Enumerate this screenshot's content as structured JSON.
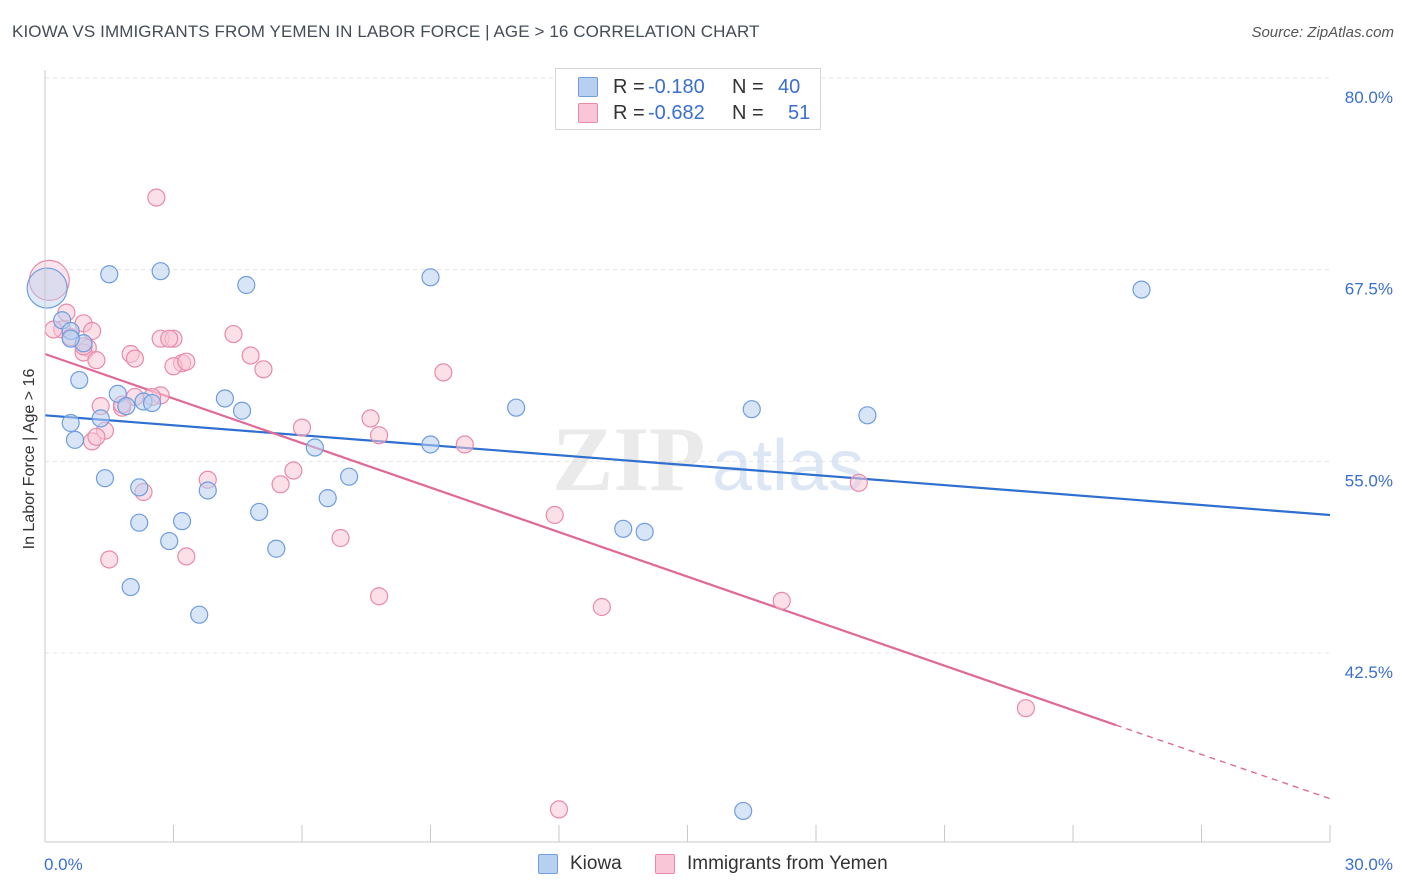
{
  "header": {
    "title": "KIOWA VS IMMIGRANTS FROM YEMEN IN LABOR FORCE | AGE > 16 CORRELATION CHART",
    "source": "Source: ZipAtlas.com"
  },
  "watermark": {
    "part1": "ZIP",
    "part2": "atlas"
  },
  "colors": {
    "kiowa_fill": "#b8d0f0",
    "kiowa_stroke": "#6f9de0",
    "kiowa_line": "#2e6fcf",
    "yemen_fill": "#f8c6d6",
    "yemen_stroke": "#e98aab",
    "yemen_line": "#e06a97",
    "tick_text": "#3b6fcf",
    "grid": "#e4e4e4"
  },
  "legend_top": {
    "rows": [
      {
        "r_label": "R =",
        "r_value": "-0.180",
        "n_label": "N =",
        "n_value": "40"
      },
      {
        "r_label": "R =",
        "r_value": "-0.682",
        "n_label": "N =",
        "n_value": "51"
      }
    ]
  },
  "legend_bottom": {
    "items": [
      "Kiowa",
      "Immigrants from Yemen"
    ]
  },
  "chart_data": {
    "type": "scatter",
    "title": "KIOWA VS IMMIGRANTS FROM YEMEN IN LABOR FORCE | AGE > 16 CORRELATION CHART",
    "xlabel": "",
    "ylabel": "In Labor Force | Age > 16",
    "xlim": [
      0,
      30
    ],
    "ylim": [
      32,
      81
    ],
    "x_tick_labels": [
      "0.0%",
      "30.0%"
    ],
    "y_ticks": [
      42.5,
      55.0,
      67.5,
      80.0
    ],
    "y_tick_labels": [
      "42.5%",
      "55.0%",
      "67.5%",
      "80.0%"
    ],
    "grid": true,
    "legend_position": "top-center",
    "series": [
      {
        "name": "Kiowa",
        "r": -0.18,
        "n": 40,
        "trend": {
          "x": [
            0,
            30
          ],
          "y": [
            58.0,
            51.5
          ]
        },
        "points": [
          [
            0.05,
            66.3
          ],
          [
            0.4,
            64.2
          ],
          [
            0.6,
            63.5
          ],
          [
            0.9,
            62.7
          ],
          [
            1.5,
            67.2
          ],
          [
            2.7,
            67.4
          ],
          [
            4.7,
            66.5
          ],
          [
            9.0,
            67.0
          ],
          [
            25.6,
            66.2
          ],
          [
            0.8,
            60.3
          ],
          [
            1.7,
            59.4
          ],
          [
            2.3,
            58.9
          ],
          [
            4.2,
            59.1
          ],
          [
            4.6,
            58.3
          ],
          [
            1.3,
            57.8
          ],
          [
            0.6,
            57.5
          ],
          [
            0.7,
            56.4
          ],
          [
            6.3,
            55.9
          ],
          [
            9.0,
            56.1
          ],
          [
            11.0,
            58.5
          ],
          [
            16.5,
            58.4
          ],
          [
            19.2,
            58.0
          ],
          [
            1.4,
            53.9
          ],
          [
            2.2,
            53.3
          ],
          [
            3.8,
            53.1
          ],
          [
            7.1,
            54.0
          ],
          [
            6.6,
            52.6
          ],
          [
            2.2,
            51.0
          ],
          [
            3.2,
            51.1
          ],
          [
            5.0,
            51.7
          ],
          [
            2.9,
            49.8
          ],
          [
            5.4,
            49.3
          ],
          [
            13.5,
            50.6
          ],
          [
            14.0,
            50.4
          ],
          [
            2.0,
            46.8
          ],
          [
            3.6,
            45.0
          ],
          [
            16.3,
            32.2
          ],
          [
            0.6,
            63.0
          ],
          [
            2.5,
            58.8
          ],
          [
            1.9,
            58.6
          ]
        ]
      },
      {
        "name": "Immigrants from Yemen",
        "r": -0.682,
        "n": 51,
        "trend": {
          "x": [
            0,
            25
          ],
          "y": [
            62.0,
            37.8
          ]
        },
        "trend_dashed": {
          "x": [
            25,
            30
          ],
          "y": [
            37.8,
            33.0
          ]
        },
        "points": [
          [
            0.1,
            66.8
          ],
          [
            0.4,
            63.6
          ],
          [
            0.9,
            64.0
          ],
          [
            1.1,
            63.5
          ],
          [
            0.6,
            63.1
          ],
          [
            1.0,
            62.4
          ],
          [
            0.9,
            62.1
          ],
          [
            1.2,
            61.6
          ],
          [
            2.6,
            72.2
          ],
          [
            2.7,
            63.0
          ],
          [
            3.0,
            63.0
          ],
          [
            4.4,
            63.3
          ],
          [
            3.2,
            61.4
          ],
          [
            3.0,
            61.2
          ],
          [
            4.8,
            61.9
          ],
          [
            5.1,
            61.0
          ],
          [
            2.0,
            62.0
          ],
          [
            2.1,
            61.7
          ],
          [
            2.7,
            59.3
          ],
          [
            2.1,
            59.2
          ],
          [
            1.8,
            58.5
          ],
          [
            1.4,
            57.0
          ],
          [
            1.1,
            56.3
          ],
          [
            1.2,
            56.6
          ],
          [
            9.3,
            60.8
          ],
          [
            6.0,
            57.2
          ],
          [
            7.6,
            57.8
          ],
          [
            7.8,
            56.7
          ],
          [
            9.8,
            56.1
          ],
          [
            5.8,
            54.4
          ],
          [
            5.5,
            53.5
          ],
          [
            3.8,
            53.8
          ],
          [
            2.3,
            53.0
          ],
          [
            11.9,
            51.5
          ],
          [
            6.9,
            50.0
          ],
          [
            1.5,
            48.6
          ],
          [
            3.3,
            48.8
          ],
          [
            7.8,
            46.2
          ],
          [
            13.0,
            45.5
          ],
          [
            17.2,
            45.9
          ],
          [
            19.0,
            53.6
          ],
          [
            22.9,
            38.9
          ],
          [
            12.0,
            32.3
          ],
          [
            1.3,
            58.6
          ],
          [
            0.5,
            64.7
          ],
          [
            0.2,
            63.6
          ],
          [
            2.5,
            59.2
          ],
          [
            2.9,
            63.0
          ],
          [
            3.3,
            61.5
          ],
          [
            1.8,
            58.7
          ],
          [
            0.9,
            62.5
          ]
        ]
      }
    ]
  }
}
